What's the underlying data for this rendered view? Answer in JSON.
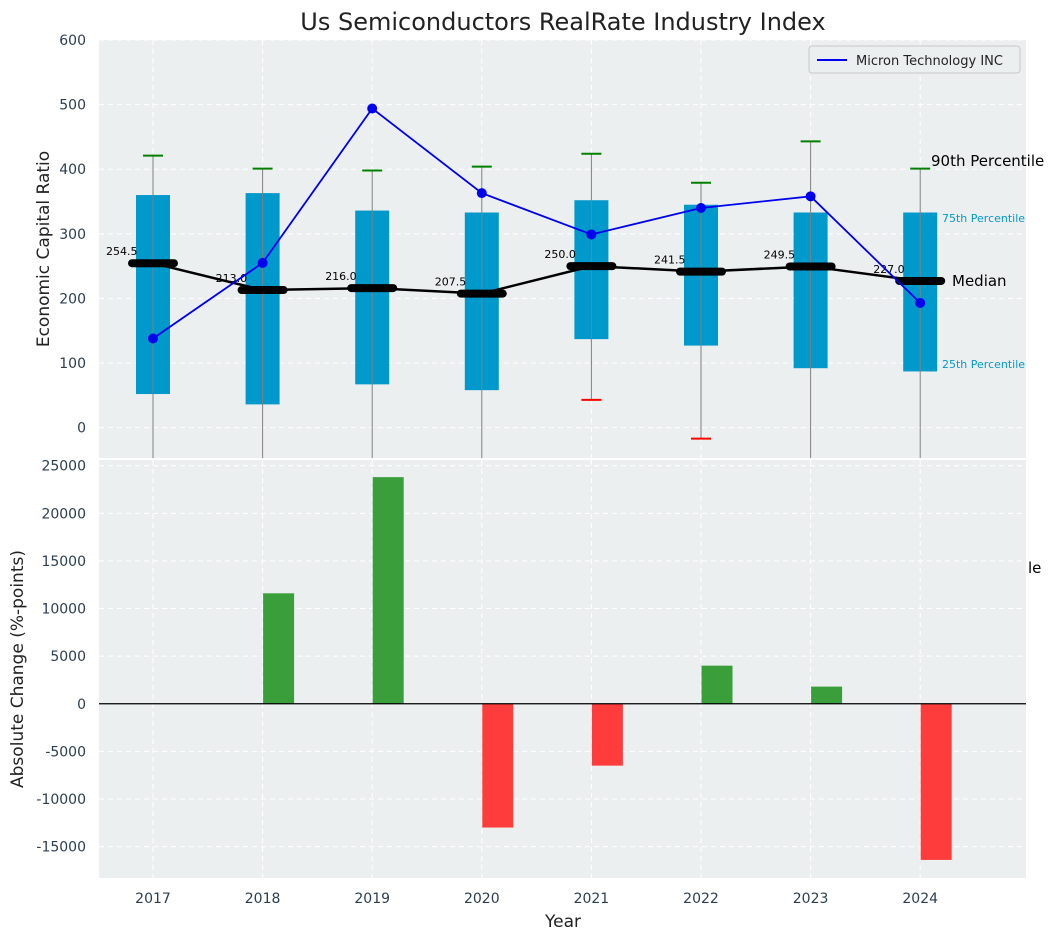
{
  "chart_data": [
    {
      "type": "box",
      "title": "Us Semiconductors RealRate Industry Index",
      "ylabel": "Economic Capital Ratio",
      "ylim": [
        -47,
        600
      ],
      "yticks": [
        0,
        100,
        200,
        300,
        400,
        500,
        600
      ],
      "categories": [
        "2017",
        "2018",
        "2019",
        "2020",
        "2021",
        "2022",
        "2023",
        "2024"
      ],
      "p10": [
        -47,
        -47,
        -47,
        -47,
        43,
        -17,
        -47,
        -47
      ],
      "p25": [
        52,
        36,
        67,
        58,
        137,
        127,
        92,
        87
      ],
      "median": [
        254.5,
        213.0,
        216.0,
        207.5,
        250.0,
        241.5,
        249.5,
        227.0
      ],
      "p75": [
        360,
        363,
        336,
        333,
        352,
        345,
        333,
        333
      ],
      "p90": [
        421,
        401,
        398,
        404,
        424,
        379,
        443,
        401
      ],
      "series": [
        {
          "name": "Micron Technology INC",
          "values": [
            138,
            255,
            494,
            363,
            299,
            340,
            358,
            193
          ],
          "color": "#0000ee"
        }
      ],
      "annotations": {
        "p90": "90th Percentile",
        "p75": "75th Percentile",
        "median": "Median",
        "p25": "25th Percentile",
        "clipped": "le"
      },
      "colors": {
        "box": "#0099cc",
        "median": "#000000",
        "p90_cap": "#008000",
        "p10_cap": "#ff0000",
        "background": "#eceff0"
      }
    },
    {
      "type": "bar",
      "xlabel": "Year",
      "ylabel": "Absolute Change (%-points)",
      "ylim": [
        -18300,
        25600
      ],
      "yticks": [
        -15000,
        -10000,
        -5000,
        0,
        5000,
        10000,
        15000,
        20000,
        25000
      ],
      "categories": [
        "2017",
        "2018",
        "2019",
        "2020",
        "2021",
        "2022",
        "2023",
        "2024"
      ],
      "values": [
        0,
        11600,
        23800,
        -13000,
        -6500,
        4000,
        1800,
        -16400
      ],
      "colors": {
        "positive": "#3a9e3a",
        "negative": "#ff3c3c"
      }
    }
  ]
}
